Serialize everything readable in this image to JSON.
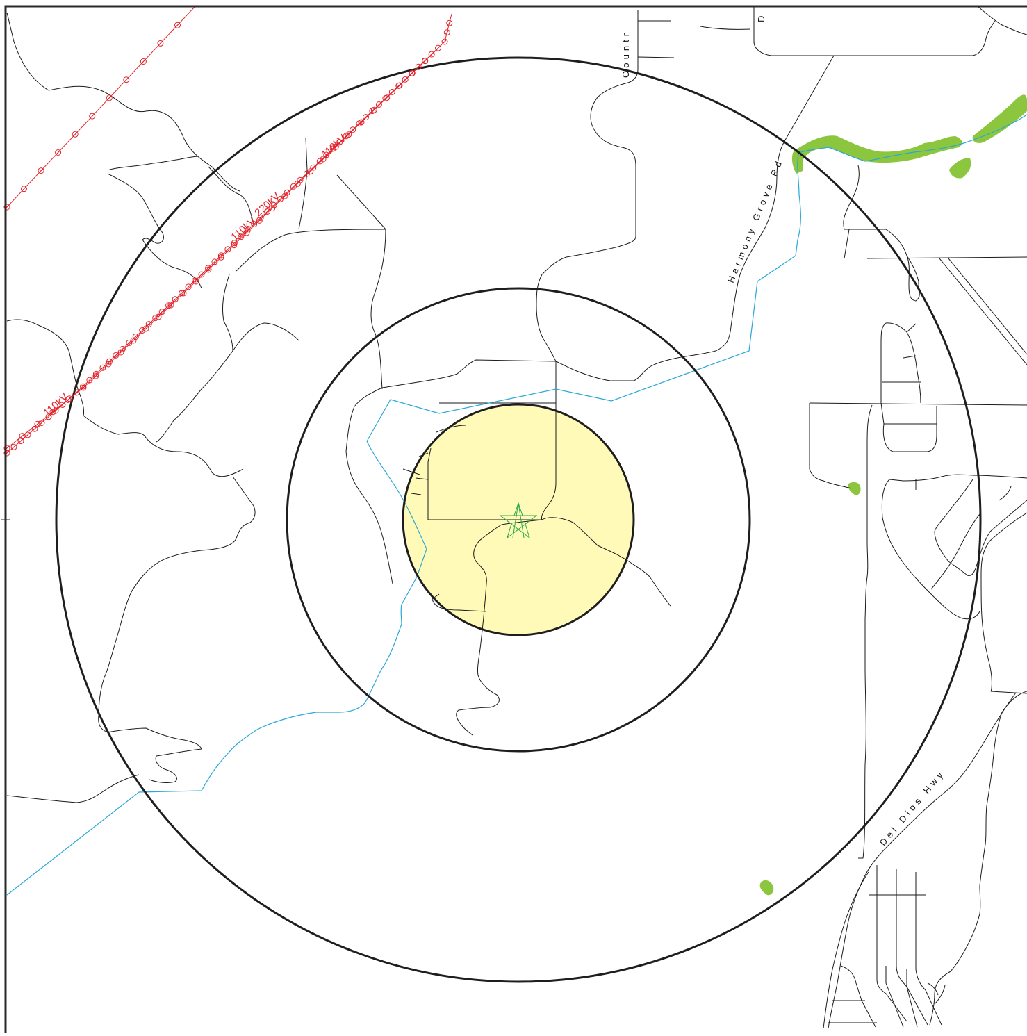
{
  "map": {
    "colors": {
      "frame": "#2a2a2a",
      "road": "#1a1a1a",
      "river": "#29a8d8",
      "powerline": "#e2222a",
      "vegetation": "#8cc63f",
      "inner_ring_fill": "#fffab8",
      "ring_stroke": "#1e1e1e",
      "center_marker": "#2aa84a"
    },
    "road_labels": {
      "country": "Countr",
      "country_top": "D",
      "harmony": "Harmony Grove Rd",
      "del_dios": "Del Dios Hwy"
    },
    "powerline_labels": {
      "a": "110kV",
      "b": "220kV",
      "c": "110kV",
      "d": "110kV"
    },
    "center_icon": "star-marker-icon"
  }
}
